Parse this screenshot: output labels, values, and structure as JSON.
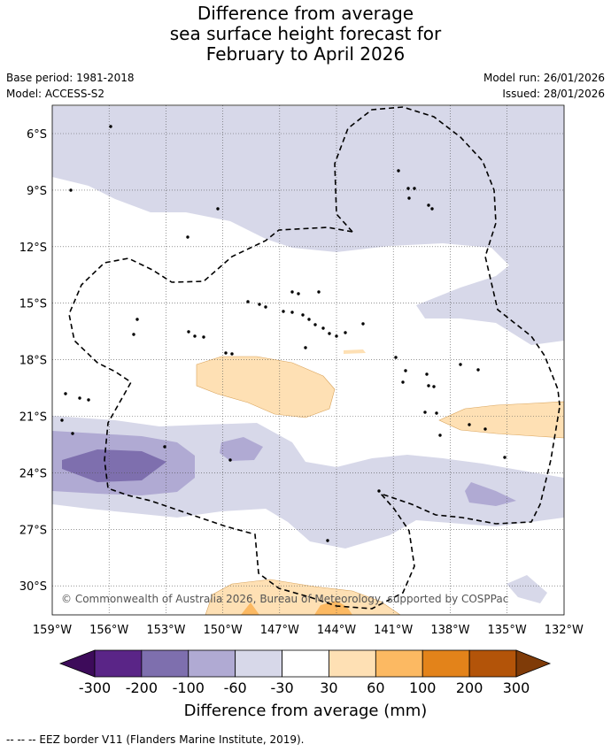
{
  "title": {
    "line1": "Difference from average",
    "line2": "sea surface height forecast for",
    "line3": "February to April 2026"
  },
  "meta": {
    "base_period": "Base period: 1981-2018",
    "model": "Model: ACCESS-S2",
    "model_run": "Model run: 26/01/2026",
    "issued": "Issued: 28/01/2026"
  },
  "map": {
    "lat_labels": [
      "6°S",
      "9°S",
      "12°S",
      "15°S",
      "18°S",
      "21°S",
      "24°S",
      "27°S",
      "30°S"
    ],
    "lon_labels": [
      "159°W",
      "156°W",
      "153°W",
      "150°W",
      "147°W",
      "144°W",
      "141°W",
      "138°W",
      "135°W",
      "132°W"
    ],
    "copyright": "© Commonwealth of Australia 2026, Bureau of Meteorology, supported by COSPPac"
  },
  "legend": {
    "tick_labels": [
      "-300",
      "-200",
      "-100",
      "-60",
      "-30",
      "30",
      "60",
      "100",
      "200",
      "300"
    ],
    "colors": [
      "#3d0b5a",
      "#5a2587",
      "#7e6fae",
      "#b0aad3",
      "#d7d8e9",
      "#ffffff",
      "#fee0b4",
      "#fcb962",
      "#e3831a",
      "#b35409",
      "#7f3b08"
    ],
    "title": "Difference from average (mm)"
  },
  "footer": {
    "eez_note": "--  --  -- EEZ border V11 (Flanders Marine Institute, 2019)."
  }
}
